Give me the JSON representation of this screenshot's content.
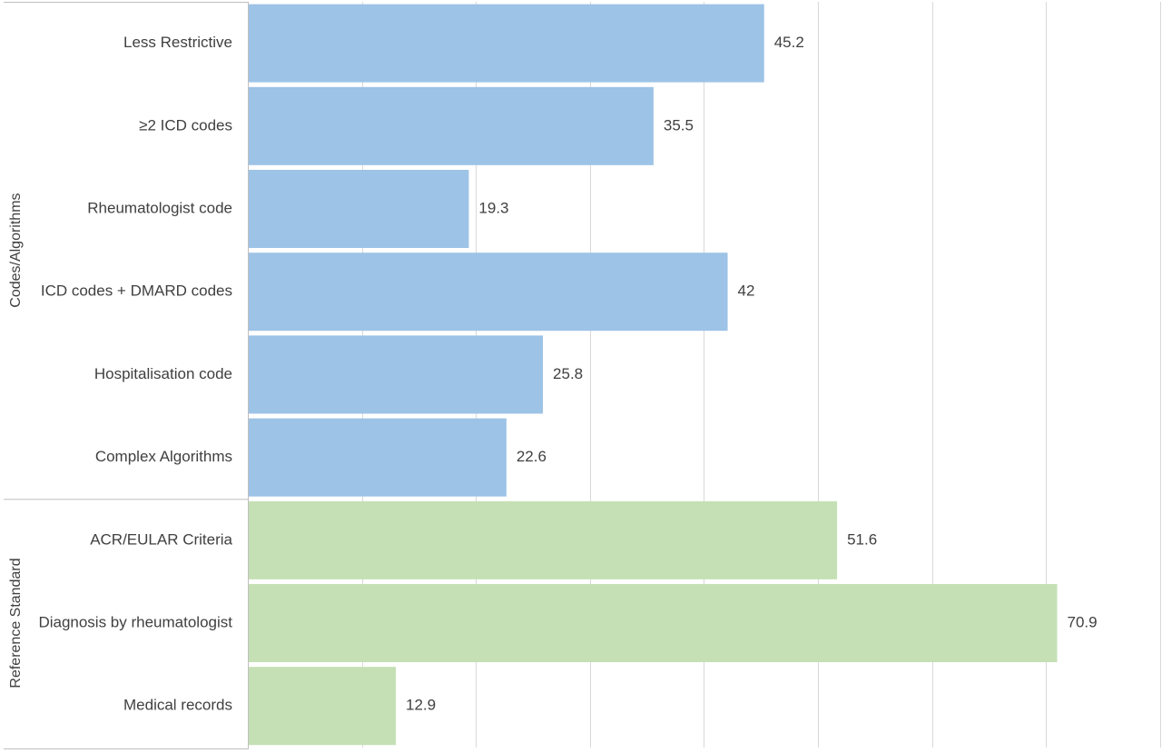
{
  "chart_data": {
    "type": "bar",
    "orientation": "horizontal",
    "xlim": [
      0,
      80
    ],
    "x_major_unit": 10,
    "grid": true,
    "show_x_tick_labels": false,
    "legend": "none",
    "groups": [
      {
        "name": "Codes/Algorithms",
        "color": "#9DC3E6",
        "categories": [
          "Less Restrictive",
          "≥2 ICD codes",
          "Rheumatologist code",
          "ICD codes + DMARD codes",
          "Hospitalisation code",
          "Complex Algorithms"
        ],
        "values": [
          45.2,
          35.5,
          19.3,
          42,
          25.8,
          22.6
        ]
      },
      {
        "name": "Reference Standard",
        "color": "#C5E0B4",
        "categories": [
          "ACR/EULAR Criteria",
          "Diagnosis by rheumatologist",
          "Medical records"
        ],
        "values": [
          51.6,
          70.9,
          12.9
        ]
      }
    ]
  },
  "colors": {
    "grid": "#D9D9D9",
    "axis": "#BFBFBF",
    "text": "#404040"
  }
}
